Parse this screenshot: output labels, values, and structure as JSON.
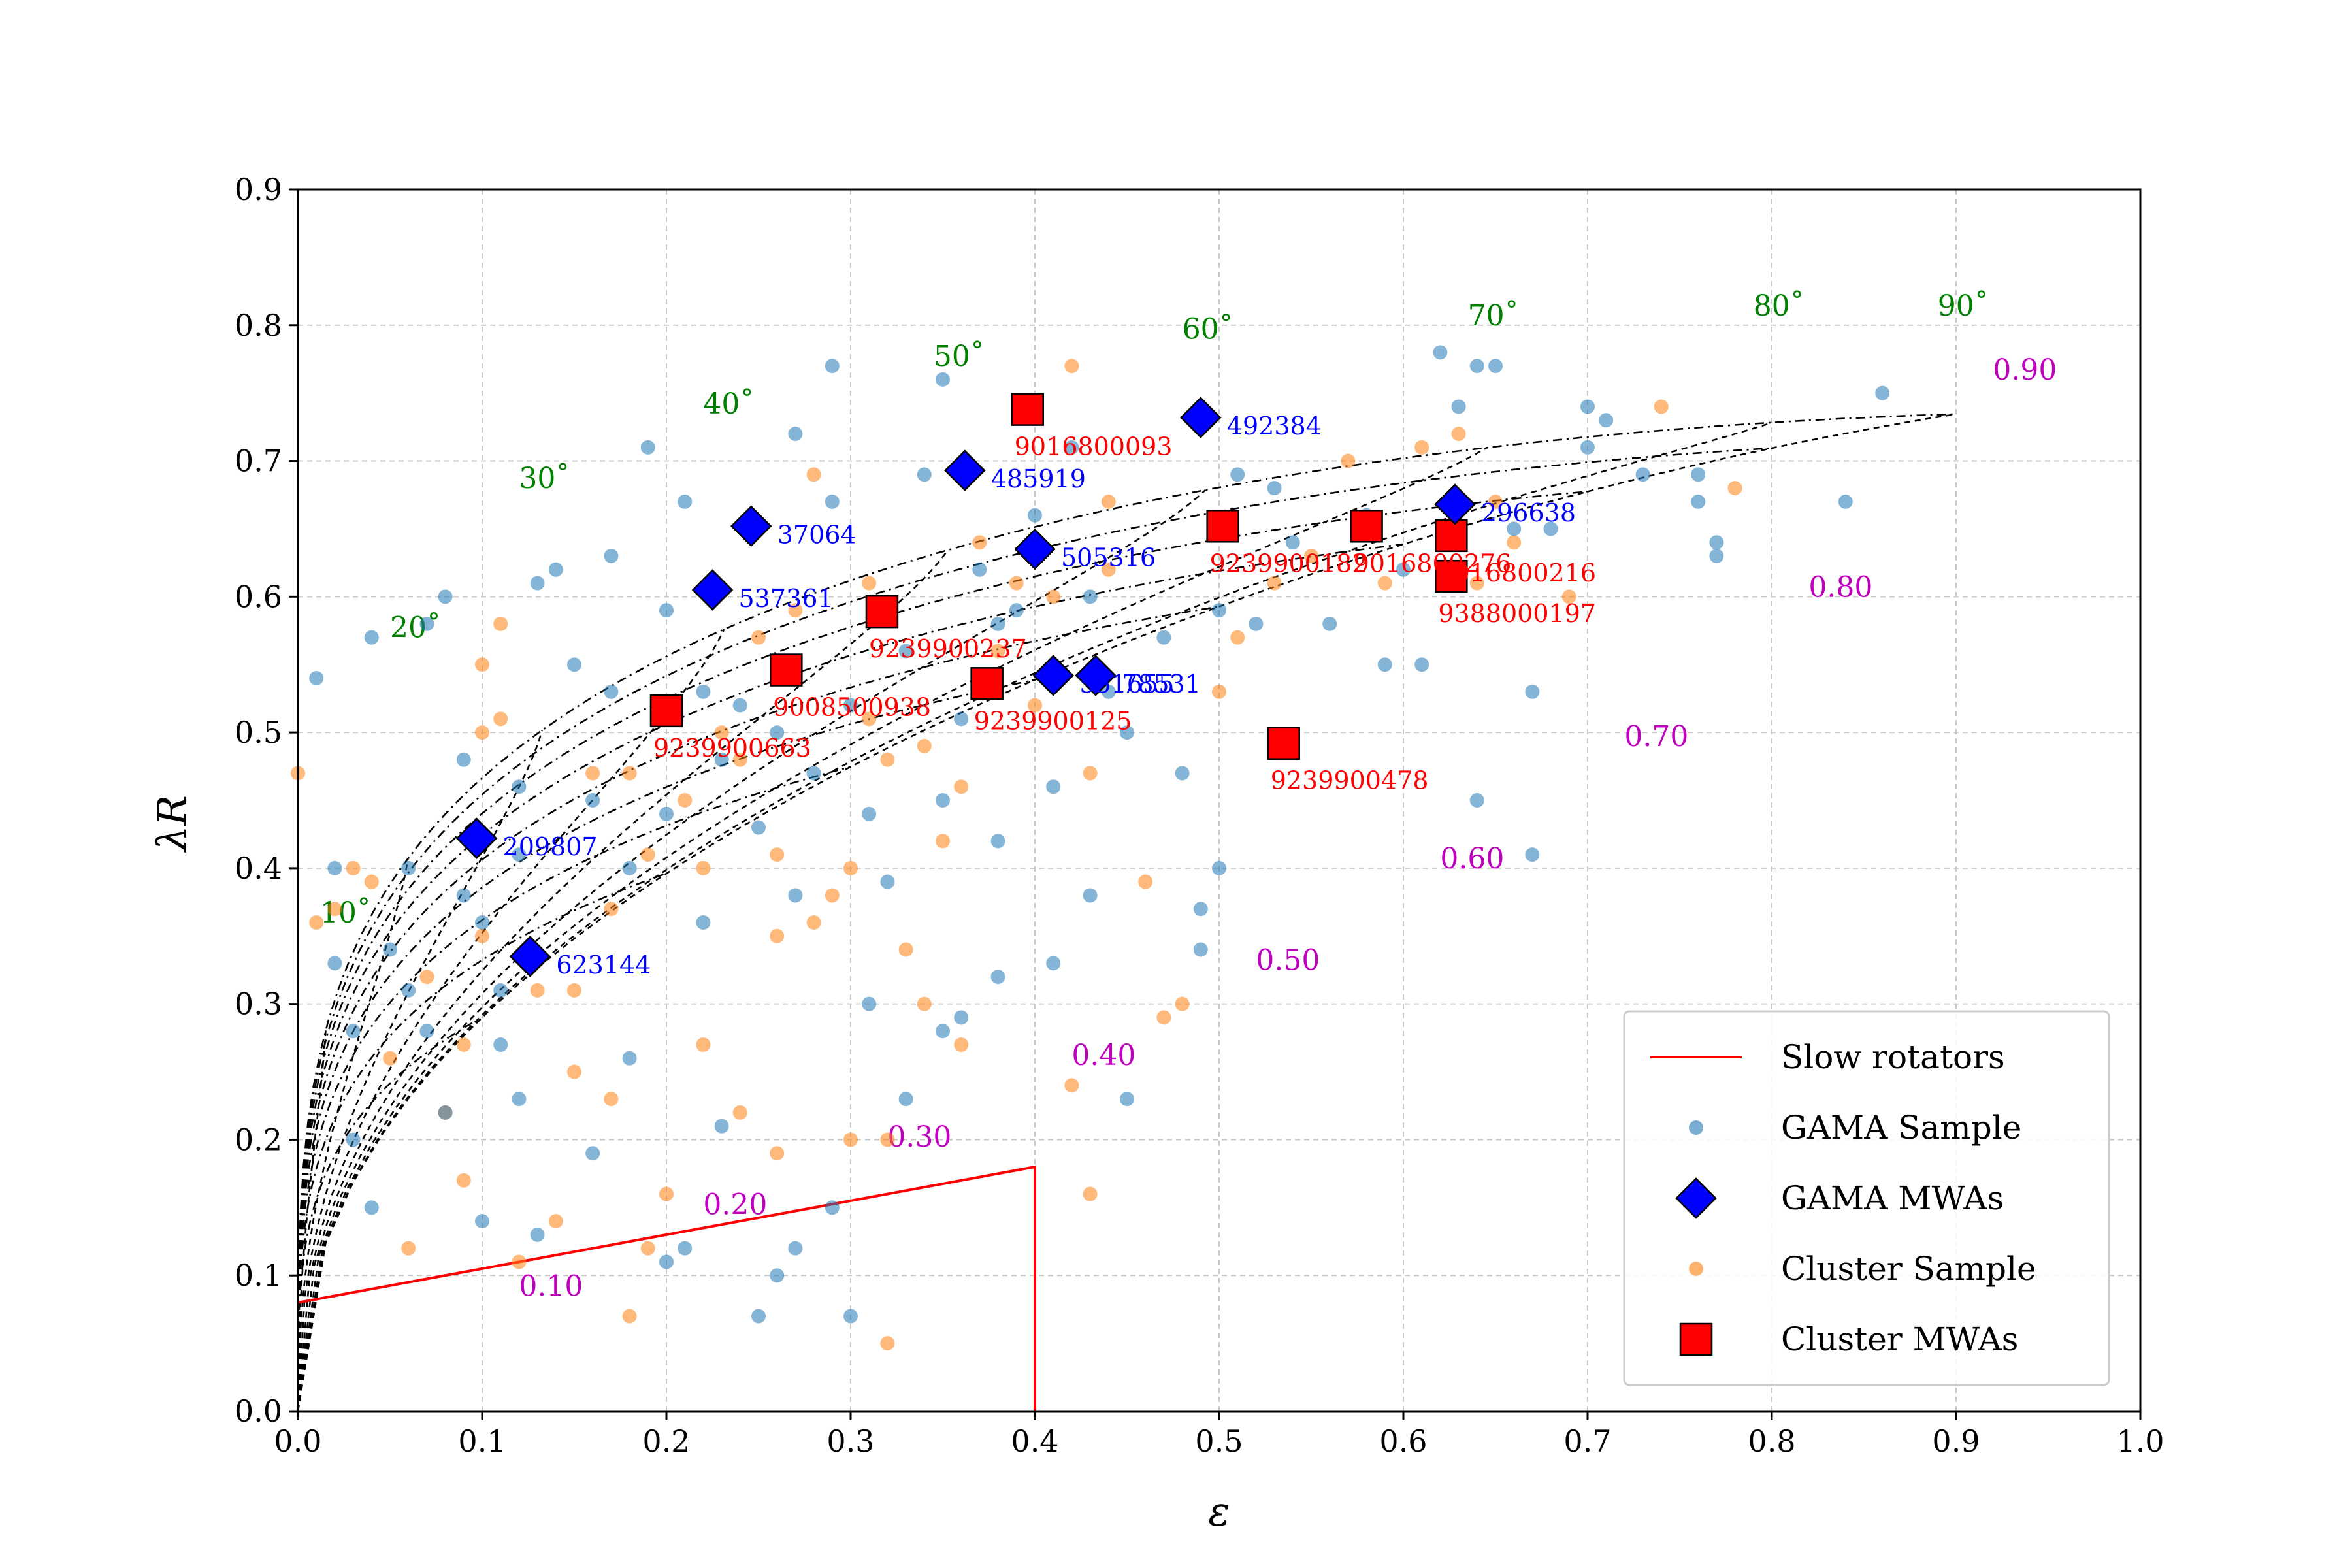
{
  "colors": {
    "gama_sample": "#1f77b4",
    "cluster_sample": "#ff7f0e",
    "gama_mwa": "#0000ff",
    "cluster_mwa": "#ff0000",
    "slow_rotator_line": "#ff0000",
    "angle_label": "#008000",
    "isophote_label": "#bf00bf",
    "gama_mwa_label": "#0000ff",
    "cluster_mwa_label": "#ff0000"
  },
  "chart_data": {
    "type": "scatter",
    "xlabel": "ε",
    "ylabel": "λR",
    "xlim": [
      0.0,
      1.0
    ],
    "ylim": [
      0.0,
      0.9
    ],
    "grid": true,
    "xticks": [
      "0.0",
      "0.1",
      "0.2",
      "0.3",
      "0.4",
      "0.5",
      "0.6",
      "0.7",
      "0.8",
      "0.9",
      "1.0"
    ],
    "yticks": [
      "0.0",
      "0.1",
      "0.2",
      "0.3",
      "0.4",
      "0.5",
      "0.6",
      "0.7",
      "0.8",
      "0.9"
    ],
    "legend": {
      "placement": "lower-right",
      "entries": [
        {
          "key": "slow",
          "label": "Slow rotators"
        },
        {
          "key": "gama_sample",
          "label": "GAMA Sample"
        },
        {
          "key": "gama_mwa",
          "label": "GAMA MWAs"
        },
        {
          "key": "cluster_sample",
          "label": "Cluster Sample"
        },
        {
          "key": "cluster_mwa",
          "label": "Cluster MWAs"
        }
      ]
    },
    "slow_rotator_boundary": [
      [
        0.0,
        0.08
      ],
      [
        0.4,
        0.18
      ],
      [
        0.4,
        0.0
      ]
    ],
    "inclination_labels": [
      {
        "text": "10˚",
        "x": 0.012,
        "y": 0.36
      },
      {
        "text": "20˚",
        "x": 0.05,
        "y": 0.57
      },
      {
        "text": "30˚",
        "x": 0.12,
        "y": 0.68
      },
      {
        "text": "40˚",
        "x": 0.22,
        "y": 0.735
      },
      {
        "text": "50˚",
        "x": 0.345,
        "y": 0.77
      },
      {
        "text": "60˚",
        "x": 0.48,
        "y": 0.79
      },
      {
        "text": "70˚",
        "x": 0.635,
        "y": 0.8
      },
      {
        "text": "80˚",
        "x": 0.79,
        "y": 0.807
      },
      {
        "text": "90˚",
        "x": 0.89,
        "y": 0.807
      }
    ],
    "isophote_labels": [
      {
        "text": "0.10",
        "x": 0.12,
        "y": 0.085
      },
      {
        "text": "0.20",
        "x": 0.22,
        "y": 0.145
      },
      {
        "text": "0.30",
        "x": 0.32,
        "y": 0.195
      },
      {
        "text": "0.40",
        "x": 0.42,
        "y": 0.255
      },
      {
        "text": "0.50",
        "x": 0.52,
        "y": 0.325
      },
      {
        "text": "0.60",
        "x": 0.62,
        "y": 0.4
      },
      {
        "text": "0.70",
        "x": 0.72,
        "y": 0.49
      },
      {
        "text": "0.80",
        "x": 0.82,
        "y": 0.6
      },
      {
        "text": "0.90",
        "x": 0.92,
        "y": 0.76
      }
    ],
    "gama_mwas": [
      {
        "id": "492384",
        "x": 0.49,
        "y": 0.732
      },
      {
        "id": "485919",
        "x": 0.362,
        "y": 0.693
      },
      {
        "id": "296638",
        "x": 0.628,
        "y": 0.668
      },
      {
        "id": "37064",
        "x": 0.246,
        "y": 0.652
      },
      {
        "id": "505316",
        "x": 0.4,
        "y": 0.635
      },
      {
        "id": "537361",
        "x": 0.225,
        "y": 0.605
      },
      {
        "id": "551655",
        "x": 0.41,
        "y": 0.542
      },
      {
        "id": "78531",
        "x": 0.433,
        "y": 0.542
      },
      {
        "id": "209807",
        "x": 0.097,
        "y": 0.422
      },
      {
        "id": "623144",
        "x": 0.126,
        "y": 0.335
      }
    ],
    "cluster_mwas": [
      {
        "id": "9016800093",
        "x": 0.396,
        "y": 0.738
      },
      {
        "id": "9016800276",
        "x": 0.58,
        "y": 0.652
      },
      {
        "id": "9239900182",
        "x": 0.502,
        "y": 0.652
      },
      {
        "id": "9016800216",
        "x": 0.626,
        "y": 0.645
      },
      {
        "id": "9388000197",
        "x": 0.626,
        "y": 0.615
      },
      {
        "id": "9239900237",
        "x": 0.317,
        "y": 0.589
      },
      {
        "id": "9008500938",
        "x": 0.265,
        "y": 0.546
      },
      {
        "id": "9239900125",
        "x": 0.374,
        "y": 0.536
      },
      {
        "id": "9239900663",
        "x": 0.2,
        "y": 0.516
      },
      {
        "id": "9239900478",
        "x": 0.535,
        "y": 0.492
      }
    ],
    "gama_sample": [
      [
        0.01,
        0.54
      ],
      [
        0.02,
        0.4
      ],
      [
        0.03,
        0.28
      ],
      [
        0.04,
        0.57
      ],
      [
        0.05,
        0.34
      ],
      [
        0.06,
        0.31
      ],
      [
        0.06,
        0.4
      ],
      [
        0.07,
        0.28
      ],
      [
        0.07,
        0.58
      ],
      [
        0.08,
        0.6
      ],
      [
        0.09,
        0.48
      ],
      [
        0.09,
        0.38
      ],
      [
        0.1,
        0.36
      ],
      [
        0.11,
        0.31
      ],
      [
        0.11,
        0.27
      ],
      [
        0.12,
        0.46
      ],
      [
        0.12,
        0.41
      ],
      [
        0.13,
        0.61
      ],
      [
        0.14,
        0.62
      ],
      [
        0.15,
        0.55
      ],
      [
        0.16,
        0.45
      ],
      [
        0.17,
        0.63
      ],
      [
        0.17,
        0.53
      ],
      [
        0.18,
        0.4
      ],
      [
        0.19,
        0.71
      ],
      [
        0.2,
        0.44
      ],
      [
        0.2,
        0.59
      ],
      [
        0.21,
        0.67
      ],
      [
        0.22,
        0.53
      ],
      [
        0.22,
        0.36
      ],
      [
        0.23,
        0.48
      ],
      [
        0.24,
        0.52
      ],
      [
        0.25,
        0.43
      ],
      [
        0.26,
        0.5
      ],
      [
        0.27,
        0.72
      ],
      [
        0.27,
        0.38
      ],
      [
        0.28,
        0.47
      ],
      [
        0.29,
        0.77
      ],
      [
        0.29,
        0.67
      ],
      [
        0.3,
        0.52
      ],
      [
        0.31,
        0.44
      ],
      [
        0.32,
        0.39
      ],
      [
        0.33,
        0.56
      ],
      [
        0.34,
        0.69
      ],
      [
        0.35,
        0.76
      ],
      [
        0.35,
        0.45
      ],
      [
        0.36,
        0.51
      ],
      [
        0.37,
        0.62
      ],
      [
        0.38,
        0.58
      ],
      [
        0.38,
        0.42
      ],
      [
        0.39,
        0.59
      ],
      [
        0.4,
        0.66
      ],
      [
        0.41,
        0.46
      ],
      [
        0.42,
        0.71
      ],
      [
        0.43,
        0.6
      ],
      [
        0.44,
        0.53
      ],
      [
        0.45,
        0.5
      ],
      [
        0.47,
        0.57
      ],
      [
        0.48,
        0.47
      ],
      [
        0.49,
        0.37
      ],
      [
        0.5,
        0.59
      ],
      [
        0.51,
        0.69
      ],
      [
        0.52,
        0.58
      ],
      [
        0.53,
        0.68
      ],
      [
        0.54,
        0.64
      ],
      [
        0.56,
        0.58
      ],
      [
        0.58,
        0.66
      ],
      [
        0.59,
        0.55
      ],
      [
        0.6,
        0.62
      ],
      [
        0.61,
        0.55
      ],
      [
        0.62,
        0.78
      ],
      [
        0.63,
        0.74
      ],
      [
        0.64,
        0.45
      ],
      [
        0.64,
        0.77
      ],
      [
        0.65,
        0.77
      ],
      [
        0.66,
        0.65
      ],
      [
        0.67,
        0.53
      ],
      [
        0.67,
        0.41
      ],
      [
        0.68,
        0.65
      ],
      [
        0.7,
        0.71
      ],
      [
        0.7,
        0.74
      ],
      [
        0.71,
        0.73
      ],
      [
        0.73,
        0.69
      ],
      [
        0.76,
        0.69
      ],
      [
        0.76,
        0.67
      ],
      [
        0.77,
        0.64
      ],
      [
        0.77,
        0.63
      ],
      [
        0.84,
        0.67
      ],
      [
        0.86,
        0.75
      ],
      [
        0.02,
        0.33
      ],
      [
        0.03,
        0.2
      ],
      [
        0.04,
        0.15
      ],
      [
        0.08,
        0.22
      ],
      [
        0.1,
        0.14
      ],
      [
        0.12,
        0.23
      ],
      [
        0.13,
        0.13
      ],
      [
        0.16,
        0.19
      ],
      [
        0.18,
        0.26
      ],
      [
        0.2,
        0.11
      ],
      [
        0.21,
        0.12
      ],
      [
        0.23,
        0.21
      ],
      [
        0.25,
        0.07
      ],
      [
        0.26,
        0.1
      ],
      [
        0.27,
        0.12
      ],
      [
        0.29,
        0.15
      ],
      [
        0.3,
        0.07
      ],
      [
        0.31,
        0.3
      ],
      [
        0.33,
        0.23
      ],
      [
        0.35,
        0.28
      ],
      [
        0.36,
        0.29
      ],
      [
        0.38,
        0.32
      ],
      [
        0.41,
        0.33
      ],
      [
        0.43,
        0.38
      ],
      [
        0.45,
        0.23
      ],
      [
        0.49,
        0.34
      ],
      [
        0.5,
        0.4
      ]
    ],
    "cluster_sample": [
      [
        0.0,
        0.47
      ],
      [
        0.01,
        0.36
      ],
      [
        0.04,
        0.39
      ],
      [
        0.05,
        0.26
      ],
      [
        0.06,
        0.12
      ],
      [
        0.07,
        0.32
      ],
      [
        0.08,
        0.22
      ],
      [
        0.09,
        0.27
      ],
      [
        0.1,
        0.35
      ],
      [
        0.1,
        0.5
      ],
      [
        0.1,
        0.55
      ],
      [
        0.11,
        0.58
      ],
      [
        0.11,
        0.51
      ],
      [
        0.13,
        0.31
      ],
      [
        0.14,
        0.14
      ],
      [
        0.15,
        0.25
      ],
      [
        0.16,
        0.47
      ],
      [
        0.17,
        0.37
      ],
      [
        0.17,
        0.23
      ],
      [
        0.18,
        0.07
      ],
      [
        0.18,
        0.47
      ],
      [
        0.19,
        0.41
      ],
      [
        0.21,
        0.45
      ],
      [
        0.22,
        0.4
      ],
      [
        0.22,
        0.27
      ],
      [
        0.23,
        0.5
      ],
      [
        0.24,
        0.48
      ],
      [
        0.25,
        0.57
      ],
      [
        0.26,
        0.35
      ],
      [
        0.26,
        0.41
      ],
      [
        0.27,
        0.59
      ],
      [
        0.28,
        0.36
      ],
      [
        0.28,
        0.69
      ],
      [
        0.29,
        0.38
      ],
      [
        0.3,
        0.4
      ],
      [
        0.31,
        0.51
      ],
      [
        0.31,
        0.61
      ],
      [
        0.32,
        0.05
      ],
      [
        0.32,
        0.48
      ],
      [
        0.33,
        0.34
      ],
      [
        0.34,
        0.3
      ],
      [
        0.34,
        0.49
      ],
      [
        0.35,
        0.42
      ],
      [
        0.36,
        0.46
      ],
      [
        0.37,
        0.64
      ],
      [
        0.38,
        0.56
      ],
      [
        0.39,
        0.61
      ],
      [
        0.4,
        0.52
      ],
      [
        0.41,
        0.6
      ],
      [
        0.42,
        0.24
      ],
      [
        0.42,
        0.77
      ],
      [
        0.43,
        0.16
      ],
      [
        0.43,
        0.47
      ],
      [
        0.44,
        0.62
      ],
      [
        0.44,
        0.67
      ],
      [
        0.46,
        0.39
      ],
      [
        0.47,
        0.29
      ],
      [
        0.48,
        0.3
      ],
      [
        0.5,
        0.53
      ],
      [
        0.51,
        0.57
      ],
      [
        0.53,
        0.61
      ],
      [
        0.55,
        0.63
      ],
      [
        0.57,
        0.7
      ],
      [
        0.59,
        0.61
      ],
      [
        0.61,
        0.71
      ],
      [
        0.63,
        0.72
      ],
      [
        0.64,
        0.61
      ],
      [
        0.65,
        0.67
      ],
      [
        0.66,
        0.64
      ],
      [
        0.69,
        0.6
      ],
      [
        0.74,
        0.74
      ],
      [
        0.78,
        0.68
      ],
      [
        0.02,
        0.37
      ],
      [
        0.03,
        0.4
      ],
      [
        0.09,
        0.17
      ],
      [
        0.12,
        0.11
      ],
      [
        0.15,
        0.31
      ],
      [
        0.19,
        0.12
      ],
      [
        0.2,
        0.16
      ],
      [
        0.24,
        0.22
      ],
      [
        0.26,
        0.19
      ],
      [
        0.3,
        0.2
      ],
      [
        0.32,
        0.2
      ],
      [
        0.36,
        0.27
      ]
    ]
  }
}
